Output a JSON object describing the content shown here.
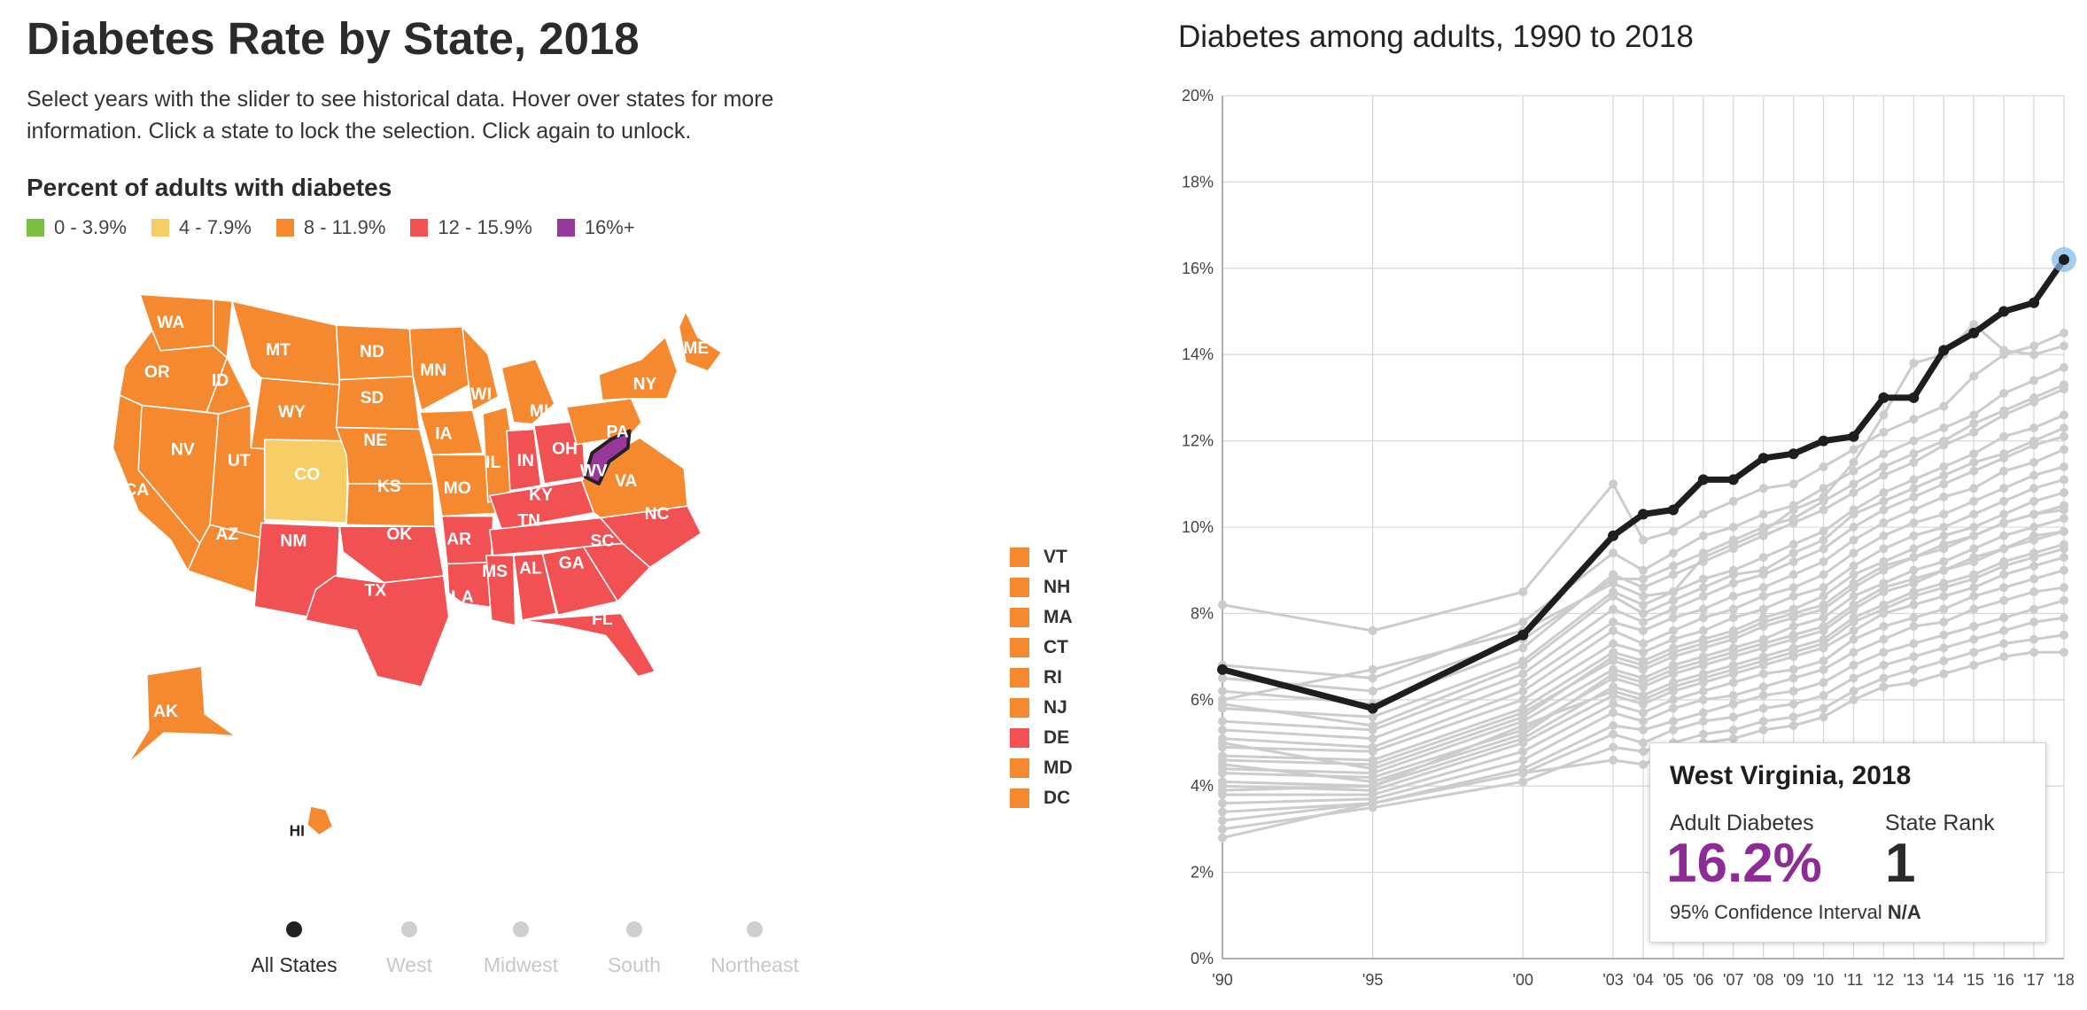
{
  "map_panel": {
    "title": "Diabetes Rate by State, 2018",
    "description": "Select years with the slider to see historical data. Hover over states for more information. Click a state to lock the selection. Click again to unlock.",
    "legend_title": "Percent of adults with diabetes",
    "legend": [
      {
        "label": "0 - 3.9%",
        "color": "#7ac142"
      },
      {
        "label": "4 - 7.9%",
        "color": "#f7cd66"
      },
      {
        "label": "8 - 11.9%",
        "color": "#f5892f"
      },
      {
        "label": "12 - 15.9%",
        "color": "#f15152"
      },
      {
        "label": "16%+",
        "color": "#98389b"
      }
    ],
    "states": [
      {
        "abbr": "WA",
        "color": "#f5892f"
      },
      {
        "abbr": "OR",
        "color": "#f5892f"
      },
      {
        "abbr": "CA",
        "color": "#f5892f"
      },
      {
        "abbr": "NV",
        "color": "#f5892f"
      },
      {
        "abbr": "ID",
        "color": "#f5892f"
      },
      {
        "abbr": "MT",
        "color": "#f5892f"
      },
      {
        "abbr": "WY",
        "color": "#f5892f"
      },
      {
        "abbr": "UT",
        "color": "#f5892f"
      },
      {
        "abbr": "AZ",
        "color": "#f5892f"
      },
      {
        "abbr": "CO",
        "color": "#f7cd66"
      },
      {
        "abbr": "NM",
        "color": "#f15152"
      },
      {
        "abbr": "ND",
        "color": "#f5892f"
      },
      {
        "abbr": "SD",
        "color": "#f5892f"
      },
      {
        "abbr": "NE",
        "color": "#f5892f"
      },
      {
        "abbr": "KS",
        "color": "#f5892f"
      },
      {
        "abbr": "OK",
        "color": "#f15152"
      },
      {
        "abbr": "TX",
        "color": "#f15152"
      },
      {
        "abbr": "MN",
        "color": "#f5892f"
      },
      {
        "abbr": "IA",
        "color": "#f5892f"
      },
      {
        "abbr": "MO",
        "color": "#f5892f"
      },
      {
        "abbr": "AR",
        "color": "#f15152"
      },
      {
        "abbr": "LA",
        "color": "#f15152"
      },
      {
        "abbr": "WI",
        "color": "#f5892f"
      },
      {
        "abbr": "IL",
        "color": "#f5892f"
      },
      {
        "abbr": "MI",
        "color": "#f5892f"
      },
      {
        "abbr": "IN",
        "color": "#f15152"
      },
      {
        "abbr": "OH",
        "color": "#f15152"
      },
      {
        "abbr": "KY",
        "color": "#f15152"
      },
      {
        "abbr": "TN",
        "color": "#f15152"
      },
      {
        "abbr": "MS",
        "color": "#f15152"
      },
      {
        "abbr": "AL",
        "color": "#f15152"
      },
      {
        "abbr": "GA",
        "color": "#f15152"
      },
      {
        "abbr": "FL",
        "color": "#f15152"
      },
      {
        "abbr": "SC",
        "color": "#f15152"
      },
      {
        "abbr": "NC",
        "color": "#f15152"
      },
      {
        "abbr": "VA",
        "color": "#f5892f"
      },
      {
        "abbr": "WV",
        "color": "#98389b"
      },
      {
        "abbr": "PA",
        "color": "#f5892f"
      },
      {
        "abbr": "NY",
        "color": "#f5892f"
      },
      {
        "abbr": "ME",
        "color": "#f5892f"
      },
      {
        "abbr": "AK",
        "color": "#f5892f"
      },
      {
        "abbr": "HI",
        "color": "#f5892f"
      }
    ],
    "small_states": [
      {
        "abbr": "VT",
        "color": "#f5892f"
      },
      {
        "abbr": "NH",
        "color": "#f5892f"
      },
      {
        "abbr": "MA",
        "color": "#f5892f"
      },
      {
        "abbr": "CT",
        "color": "#f5892f"
      },
      {
        "abbr": "RI",
        "color": "#f5892f"
      },
      {
        "abbr": "NJ",
        "color": "#f5892f"
      },
      {
        "abbr": "DE",
        "color": "#f15152"
      },
      {
        "abbr": "MD",
        "color": "#f5892f"
      },
      {
        "abbr": "DC",
        "color": "#f5892f"
      }
    ],
    "regions": [
      {
        "label": "All States",
        "active": true
      },
      {
        "label": "West",
        "active": false
      },
      {
        "label": "Midwest",
        "active": false
      },
      {
        "label": "South",
        "active": false
      },
      {
        "label": "Northeast",
        "active": false
      }
    ]
  },
  "line_panel": {
    "title": "Diabetes among adults, 1990 to 2018",
    "highlight_color": "#1e1e1e",
    "background_color": "#cccccc"
  },
  "tooltip": {
    "title": "West Virginia, 2018",
    "label_1": "Adult Diabetes",
    "value_1": "16.2%",
    "label_2": "State Rank",
    "value_2": "1",
    "ci_label": "95% Confidence Interval",
    "ci_value": "N/A"
  },
  "chart_data": {
    "type": "line",
    "title": "Diabetes among adults, 1990 to 2018",
    "xlabel": "",
    "ylabel": "",
    "x": [
      1990,
      1995,
      2000,
      2003,
      2004,
      2005,
      2006,
      2007,
      2008,
      2009,
      2010,
      2011,
      2012,
      2013,
      2014,
      2015,
      2016,
      2017,
      2018
    ],
    "x_tick_labels": [
      "'90",
      "'95",
      "'00",
      "'03",
      "'04",
      "'05",
      "'06",
      "'07",
      "'08",
      "'09",
      "'10",
      "'11",
      "'12",
      "'13",
      "'14",
      "'15",
      "'16",
      "'17",
      "'18"
    ],
    "y_ticks": [
      "0%",
      "2%",
      "4%",
      "6%",
      "8%",
      "10%",
      "12%",
      "14%",
      "16%",
      "18%",
      "20%"
    ],
    "ylim": [
      0,
      20
    ],
    "grid": true,
    "highlighted_series": {
      "name": "West Virginia",
      "values": [
        6.7,
        5.8,
        7.5,
        9.8,
        10.3,
        10.4,
        11.1,
        11.1,
        11.6,
        11.7,
        12.0,
        12.1,
        13.0,
        13.0,
        14.1,
        14.5,
        15.0,
        15.2,
        16.2
      ]
    },
    "series": [
      {
        "values": [
          8.2,
          7.6,
          8.5,
          11.0,
          9.7,
          9.9,
          10.3,
          10.6,
          10.9,
          11.0,
          11.4,
          11.8,
          12.2,
          12.5,
          12.8,
          13.5,
          14.0,
          14.2,
          14.5
        ]
      },
      {
        "values": [
          6.8,
          6.5,
          7.8,
          9.4,
          9.0,
          9.4,
          9.8,
          10.0,
          10.3,
          10.5,
          10.9,
          11.3,
          11.7,
          12.0,
          12.3,
          12.6,
          13.1,
          13.4,
          13.7
        ]
      },
      {
        "values": [
          6.2,
          5.9,
          7.2,
          8.9,
          8.6,
          8.9,
          9.2,
          9.5,
          9.8,
          10.1,
          10.4,
          10.8,
          11.2,
          11.5,
          11.9,
          12.2,
          12.6,
          12.9,
          13.2
        ]
      },
      {
        "values": [
          5.8,
          5.6,
          6.9,
          8.5,
          8.2,
          8.5,
          8.8,
          9.0,
          9.3,
          9.6,
          9.9,
          10.4,
          10.8,
          11.1,
          11.4,
          11.7,
          12.1,
          12.3,
          12.6
        ]
      },
      {
        "values": [
          5.5,
          5.3,
          6.6,
          8.1,
          7.8,
          8.1,
          8.4,
          8.7,
          8.9,
          9.2,
          9.5,
          10.0,
          10.4,
          10.7,
          11.0,
          11.3,
          11.6,
          11.9,
          12.1
        ]
      },
      {
        "values": [
          5.3,
          5.1,
          6.4,
          7.8,
          7.6,
          7.9,
          8.1,
          8.4,
          8.6,
          8.9,
          9.2,
          9.7,
          10.1,
          10.4,
          10.7,
          10.9,
          11.3,
          11.5,
          11.8
        ]
      },
      {
        "values": [
          5.1,
          4.9,
          6.2,
          7.6,
          7.3,
          7.6,
          7.9,
          8.1,
          8.4,
          8.6,
          8.9,
          9.4,
          9.8,
          10.1,
          10.3,
          10.6,
          10.9,
          11.2,
          11.4
        ]
      },
      {
        "values": [
          4.9,
          4.8,
          6.0,
          7.3,
          7.1,
          7.4,
          7.6,
          7.9,
          8.1,
          8.4,
          8.6,
          9.1,
          9.5,
          9.8,
          10.0,
          10.3,
          10.6,
          10.9,
          11.1
        ]
      },
      {
        "values": [
          4.7,
          4.6,
          5.8,
          7.1,
          6.9,
          7.2,
          7.4,
          7.6,
          7.9,
          8.1,
          8.4,
          8.9,
          9.2,
          9.5,
          9.8,
          10.0,
          10.3,
          10.6,
          10.8
        ]
      },
      {
        "values": [
          4.6,
          4.5,
          5.7,
          6.9,
          6.7,
          7.0,
          7.2,
          7.4,
          7.7,
          7.9,
          8.1,
          8.6,
          9.0,
          9.3,
          9.5,
          9.8,
          10.1,
          10.3,
          10.5
        ]
      },
      {
        "values": [
          4.4,
          4.3,
          5.5,
          6.7,
          6.5,
          6.8,
          7.0,
          7.2,
          7.4,
          7.7,
          7.9,
          8.4,
          8.7,
          9.0,
          9.2,
          9.5,
          9.8,
          10.0,
          10.2
        ]
      },
      {
        "values": [
          4.3,
          4.2,
          5.3,
          6.5,
          6.3,
          6.6,
          6.8,
          7.0,
          7.2,
          7.4,
          7.6,
          8.1,
          8.5,
          8.7,
          9.0,
          9.2,
          9.5,
          9.7,
          9.9
        ]
      },
      {
        "values": [
          4.1,
          4.0,
          5.1,
          6.3,
          6.1,
          6.4,
          6.6,
          6.8,
          7.0,
          7.2,
          7.4,
          7.9,
          8.2,
          8.5,
          8.7,
          8.9,
          9.2,
          9.4,
          9.6
        ]
      },
      {
        "values": [
          4.0,
          3.9,
          5.0,
          6.1,
          5.9,
          6.2,
          6.4,
          6.6,
          6.8,
          7.0,
          7.2,
          7.6,
          8.0,
          8.2,
          8.4,
          8.6,
          8.9,
          9.1,
          9.3
        ]
      },
      {
        "values": [
          3.8,
          3.8,
          4.8,
          5.9,
          5.7,
          6.0,
          6.2,
          6.4,
          6.6,
          6.7,
          6.9,
          7.4,
          7.7,
          7.9,
          8.1,
          8.4,
          8.6,
          8.8,
          9.0
        ]
      },
      {
        "values": [
          3.6,
          3.7,
          4.6,
          5.7,
          5.5,
          5.8,
          6.0,
          6.1,
          6.3,
          6.5,
          6.7,
          7.1,
          7.4,
          7.7,
          7.8,
          8.1,
          8.3,
          8.5,
          8.6
        ]
      },
      {
        "values": [
          3.4,
          3.6,
          4.4,
          5.4,
          5.3,
          5.5,
          5.7,
          5.9,
          6.1,
          6.2,
          6.4,
          6.8,
          7.1,
          7.3,
          7.5,
          7.7,
          7.9,
          8.1,
          8.3
        ]
      },
      {
        "values": [
          3.2,
          3.6,
          4.3,
          5.2,
          5.0,
          5.3,
          5.5,
          5.6,
          5.8,
          5.9,
          6.1,
          6.5,
          6.8,
          7.0,
          7.2,
          7.4,
          7.6,
          7.8,
          7.9
        ]
      },
      {
        "values": [
          3.0,
          3.5,
          4.1,
          4.9,
          4.8,
          5.0,
          5.2,
          5.3,
          5.5,
          5.6,
          5.8,
          6.2,
          6.5,
          6.7,
          6.9,
          7.1,
          7.3,
          7.4,
          7.5
        ]
      },
      {
        "values": [
          2.8,
          3.6,
          4.3,
          4.6,
          4.5,
          4.8,
          5.0,
          5.1,
          5.3,
          5.4,
          5.6,
          6.0,
          6.3,
          6.4,
          6.6,
          6.8,
          7.0,
          7.1,
          7.1
        ]
      },
      {
        "values": [
          6.0,
          6.7,
          7.6,
          8.7,
          8.4,
          8.5,
          9.3,
          9.6,
          9.9,
          10.4,
          10.7,
          11.5,
          12.6,
          13.8,
          14.0,
          14.7,
          14.1,
          14.0,
          14.2
        ]
      },
      {
        "values": [
          5.9,
          5.4,
          6.8,
          8.4,
          8.0,
          8.3,
          8.6,
          8.9,
          9.0,
          9.4,
          9.7,
          10.3,
          10.6,
          10.9,
          11.2,
          11.5,
          11.7,
          12.0,
          12.3
        ]
      },
      {
        "values": [
          5.0,
          4.4,
          5.6,
          7.0,
          6.8,
          7.1,
          7.3,
          7.5,
          7.8,
          8.0,
          8.2,
          8.7,
          9.1,
          9.3,
          9.6,
          9.8,
          10.1,
          10.3,
          10.4
        ]
      },
      {
        "values": [
          4.5,
          4.1,
          5.2,
          6.6,
          6.4,
          6.7,
          6.9,
          7.1,
          7.3,
          7.5,
          7.7,
          8.2,
          8.6,
          8.8,
          9.0,
          9.3,
          9.5,
          9.8,
          9.9
        ]
      },
      {
        "values": [
          3.9,
          4.0,
          5.4,
          6.2,
          6.0,
          6.3,
          6.5,
          6.7,
          6.9,
          7.1,
          7.3,
          7.8,
          8.1,
          8.4,
          8.6,
          8.8,
          9.1,
          9.3,
          9.5
        ]
      },
      {
        "values": [
          6.5,
          6.2,
          7.4,
          8.8,
          8.8,
          9.1,
          9.4,
          9.7,
          10.0,
          10.2,
          10.6,
          11.0,
          11.4,
          11.7,
          12.0,
          12.4,
          12.7,
          13.0,
          13.3
        ]
      }
    ]
  }
}
